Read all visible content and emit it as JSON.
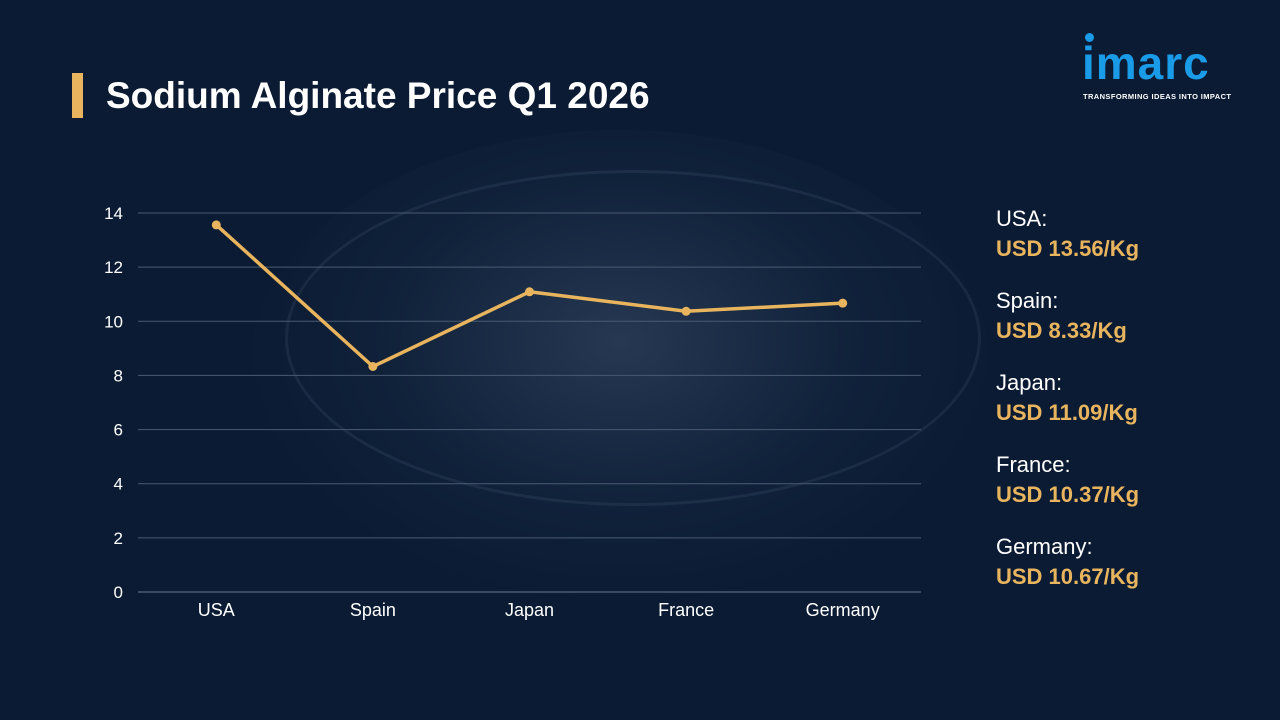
{
  "title": "Sodium Alginate Price Q1 2026",
  "logo": {
    "name": "imarc",
    "tagline": "TRANSFORMING IDEAS INTO IMPACT"
  },
  "colors": {
    "background": "#0b1b33",
    "accent": "#e8b45e",
    "brand": "#1a9be8",
    "grid": "#4a5a72"
  },
  "chart_data": {
    "type": "line",
    "categories": [
      "USA",
      "Spain",
      "Japan",
      "France",
      "Germany"
    ],
    "values": [
      13.56,
      8.33,
      11.09,
      10.37,
      10.67
    ],
    "yticks": [
      "0",
      "2",
      "4",
      "6",
      "8",
      "10",
      "12",
      "14"
    ],
    "ylim": [
      0,
      14
    ],
    "grid": true,
    "title": "",
    "xlabel": "",
    "ylabel": ""
  },
  "panel": [
    {
      "country": "USA:",
      "price": "USD 13.56/Kg"
    },
    {
      "country": "Spain:",
      "price": "USD 8.33/Kg"
    },
    {
      "country": "Japan:",
      "price": "USD 11.09/Kg"
    },
    {
      "country": "France:",
      "price": "USD 10.37/Kg"
    },
    {
      "country": "Germany:",
      "price": "USD 10.67/Kg"
    }
  ]
}
